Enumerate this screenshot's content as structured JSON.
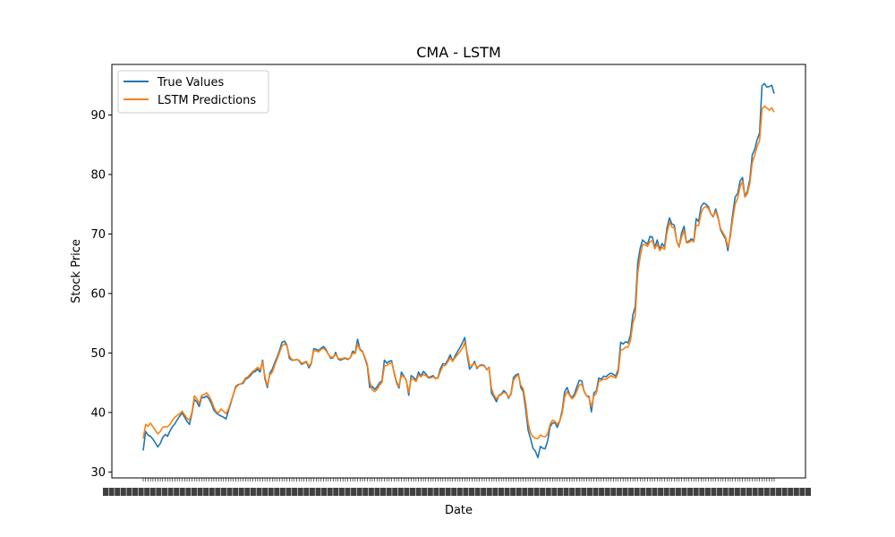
{
  "chart_data": {
    "type": "line",
    "title": "CMA - LSTM",
    "xlabel": "Date",
    "ylabel": "Stock Price",
    "ylim": [
      29,
      98.5
    ],
    "y_ticks": [
      30,
      40,
      50,
      60,
      70,
      80,
      90
    ],
    "grid": false,
    "legend_position": "upper-left",
    "x_tick_labels": "dense overlapping date labels (illegible)",
    "series": [
      {
        "name": "True Values",
        "color": "#1f77b4",
        "values": [
          33.6,
          36.8,
          36.2,
          36.0,
          35.5,
          34.9,
          34.2,
          34.8,
          35.8,
          36.3,
          36.0,
          36.9,
          37.6,
          38.1,
          38.8,
          39.4,
          39.9,
          39.2,
          38.5,
          38.0,
          39.8,
          42.2,
          41.8,
          41.0,
          42.6,
          42.5,
          42.8,
          42.3,
          41.5,
          40.4,
          39.9,
          39.6,
          39.4,
          39.2,
          38.9,
          40.3,
          41.6,
          43.0,
          44.4,
          44.7,
          44.8,
          44.9,
          45.6,
          45.8,
          46.2,
          46.7,
          46.9,
          47.3,
          46.8,
          48.8,
          45.6,
          44.2,
          46.6,
          47.3,
          48.4,
          49.3,
          50.5,
          51.8,
          52.0,
          51.3,
          49.1,
          48.8,
          48.8,
          48.9,
          48.7,
          48.1,
          48.3,
          48.5,
          47.5,
          48.2,
          50.7,
          50.6,
          50.4,
          50.8,
          51.1,
          50.6,
          49.8,
          49.1,
          49.2,
          50.1,
          49.0,
          48.8,
          49.0,
          49.1,
          48.9,
          49.2,
          50.3,
          50.0,
          52.3,
          50.6,
          50.3,
          49.1,
          47.8,
          44.2,
          44.4,
          43.9,
          44.3,
          45.0,
          45.3,
          48.8,
          48.3,
          48.6,
          48.7,
          46.6,
          45.0,
          44.1,
          46.8,
          46.1,
          45.4,
          42.9,
          46.2,
          45.9,
          45.4,
          46.8,
          46.1,
          46.9,
          46.5,
          45.9,
          46.0,
          46.2,
          45.7,
          45.9,
          47.4,
          48.2,
          48.1,
          48.8,
          49.7,
          48.6,
          49.5,
          50.2,
          50.9,
          51.7,
          52.6,
          49.6,
          47.3,
          47.8,
          48.6,
          47.4,
          47.9,
          48.0,
          47.9,
          47.2,
          47.6,
          43.2,
          42.6,
          41.8,
          42.9,
          43.1,
          43.7,
          43.3,
          42.4,
          43.2,
          45.9,
          46.3,
          46.5,
          44.2,
          43.5,
          40.5,
          37.0,
          35.6,
          34.0,
          33.5,
          32.4,
          34.3,
          34.0,
          33.9,
          35.2,
          37.6,
          38.2,
          38.3,
          37.5,
          38.6,
          40.4,
          43.5,
          44.2,
          43.0,
          42.5,
          43.1,
          44.3,
          45.4,
          45.3,
          43.5,
          42.8,
          42.7,
          40.1,
          43.3,
          43.6,
          45.8,
          45.6,
          46.1,
          46.0,
          46.4,
          46.6,
          46.4,
          46.1,
          47.3,
          51.8,
          51.5,
          51.9,
          51.7,
          53.0,
          56.4,
          57.8,
          65.2,
          67.6,
          69.0,
          68.6,
          68.3,
          69.6,
          69.5,
          67.7,
          69.0,
          67.4,
          68.4,
          67.8,
          71.0,
          72.7,
          71.7,
          71.5,
          68.8,
          67.8,
          70.2,
          71.3,
          68.6,
          68.8,
          69.2,
          68.9,
          72.6,
          72.1,
          74.6,
          75.2,
          75.0,
          74.6,
          73.4,
          72.9,
          74.2,
          72.8,
          70.7,
          69.9,
          69.2,
          67.2,
          70.0,
          73.4,
          76.2,
          76.8,
          78.9,
          79.5,
          76.3,
          77.2,
          79.2,
          83.3,
          84.2,
          85.8,
          87.0,
          94.9,
          95.3,
          94.7,
          94.8,
          95.0,
          93.6
        ],
        "data_note": "values_true"
      },
      {
        "name": "LSTM Predictions",
        "color": "#ff7f0e",
        "values": [
          35.6,
          38.0,
          37.7,
          38.2,
          37.6,
          37.0,
          36.4,
          36.8,
          37.5,
          37.6,
          37.6,
          38.0,
          38.7,
          39.2,
          39.5,
          39.8,
          40.2,
          39.6,
          39.0,
          38.7,
          40.0,
          42.8,
          42.3,
          41.5,
          42.9,
          43.0,
          43.3,
          42.8,
          42.0,
          40.9,
          40.1,
          40.0,
          40.6,
          40.2,
          39.8,
          40.6,
          41.8,
          43.0,
          44.2,
          44.6,
          44.8,
          45.1,
          45.8,
          46.0,
          46.5,
          46.9,
          47.2,
          47.6,
          47.2,
          48.5,
          46.0,
          44.5,
          46.3,
          46.8,
          48.0,
          49.0,
          50.1,
          51.2,
          51.5,
          51.2,
          49.5,
          48.9,
          48.8,
          48.9,
          48.8,
          48.3,
          48.4,
          48.6,
          47.8,
          48.3,
          50.4,
          50.3,
          50.2,
          50.6,
          50.8,
          50.4,
          49.8,
          49.3,
          49.3,
          49.8,
          49.1,
          49.0,
          49.1,
          49.2,
          49.0,
          49.2,
          50.0,
          49.9,
          51.5,
          50.5,
          50.2,
          49.3,
          48.1,
          45.2,
          43.8,
          43.5,
          43.9,
          44.6,
          45.0,
          47.8,
          47.9,
          48.2,
          48.4,
          46.8,
          45.2,
          44.4,
          46.2,
          46.0,
          45.4,
          43.4,
          45.6,
          45.6,
          45.2,
          46.3,
          46.0,
          46.4,
          46.2,
          45.8,
          45.8,
          46.0,
          45.7,
          45.8,
          46.9,
          47.8,
          47.9,
          48.5,
          49.2,
          48.6,
          49.2,
          49.7,
          50.2,
          50.8,
          51.7,
          50.0,
          48.0,
          47.9,
          48.3,
          47.6,
          47.8,
          47.9,
          47.8,
          47.3,
          47.5,
          44.0,
          42.9,
          42.3,
          42.8,
          43.0,
          43.4,
          43.2,
          42.6,
          43.0,
          45.4,
          46.0,
          46.3,
          44.6,
          44.0,
          41.5,
          38.2,
          36.6,
          35.9,
          35.7,
          35.6,
          36.2,
          36.0,
          35.9,
          36.4,
          38.0,
          38.7,
          38.5,
          38.0,
          38.6,
          39.9,
          42.6,
          43.5,
          42.9,
          42.3,
          42.7,
          43.6,
          44.6,
          44.8,
          43.6,
          42.8,
          42.5,
          41.0,
          42.8,
          43.2,
          45.2,
          45.4,
          45.6,
          45.6,
          45.9,
          46.2,
          46.0,
          45.8,
          46.7,
          50.5,
          50.6,
          51.0,
          51.0,
          52.0,
          55.0,
          56.3,
          63.5,
          66.2,
          68.2,
          68.2,
          67.9,
          68.7,
          68.9,
          67.5,
          68.3,
          67.2,
          67.8,
          67.4,
          70.2,
          72.0,
          71.2,
          71.0,
          68.8,
          67.8,
          69.5,
          70.6,
          68.5,
          68.6,
          68.9,
          68.7,
          71.5,
          71.4,
          73.5,
          74.4,
          74.6,
          74.3,
          73.4,
          73.0,
          73.8,
          72.6,
          70.9,
          70.2,
          69.5,
          67.8,
          69.5,
          72.5,
          75.0,
          76.0,
          78.0,
          78.8,
          76.2,
          76.8,
          78.5,
          82.0,
          83.2,
          84.7,
          85.7,
          91.0,
          91.5,
          91.2,
          90.8,
          91.2,
          90.5
        ],
        "data_note": "values_pred"
      }
    ]
  }
}
